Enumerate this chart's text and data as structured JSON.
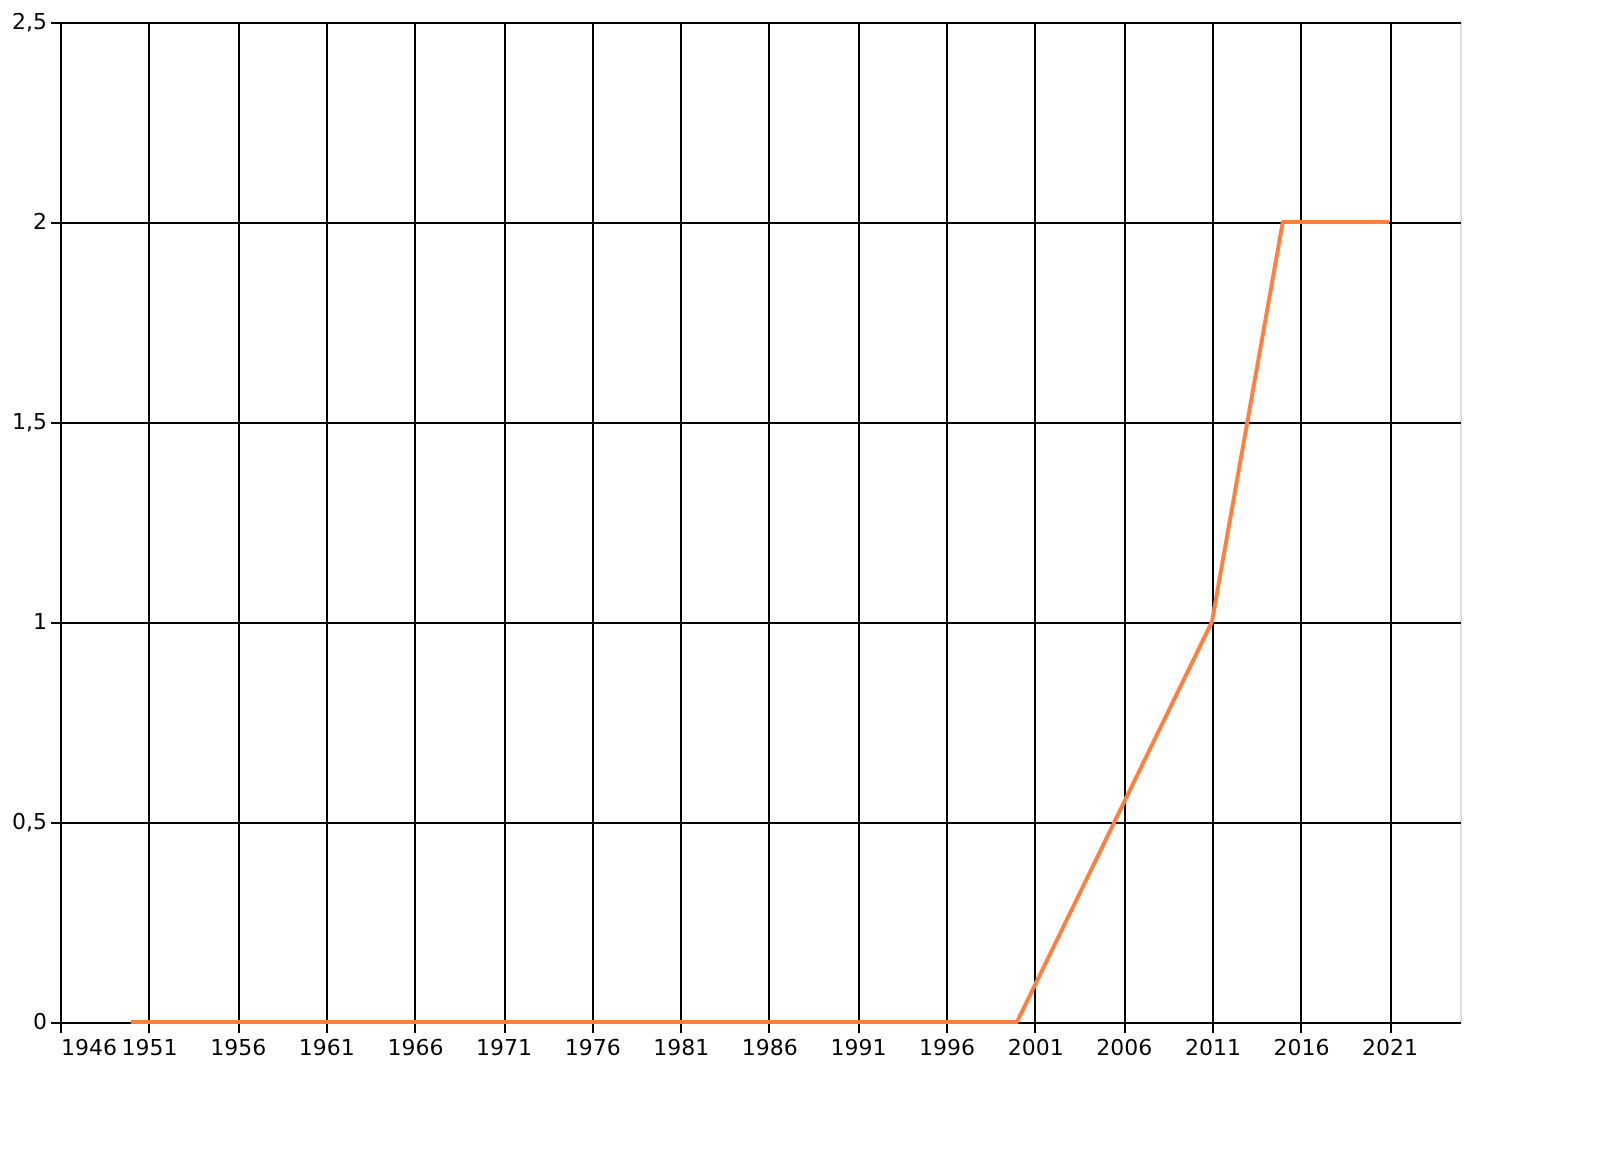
{
  "chart_data": {
    "type": "line",
    "x": [
      1950,
      2000,
      2011,
      2015,
      2021
    ],
    "series": [
      {
        "color": "#ff7f3f",
        "values": [
          0,
          0,
          1,
          2,
          2
        ]
      }
    ],
    "xlim": [
      1946,
      2025
    ],
    "xticks": [
      1946,
      1951,
      1956,
      1961,
      1966,
      1971,
      1976,
      1981,
      1986,
      1991,
      1996,
      2001,
      2006,
      2011,
      2016,
      2021
    ],
    "ylim": [
      0,
      2.5
    ],
    "yticks": [
      0,
      {
        "value": 0.5,
        "label": "0,5"
      },
      1,
      {
        "value": 1.5,
        "label": "1,5"
      },
      2,
      {
        "value": 2.5,
        "label": "2,5"
      }
    ],
    "grid": true,
    "marker": "none",
    "line_style": "solid"
  }
}
